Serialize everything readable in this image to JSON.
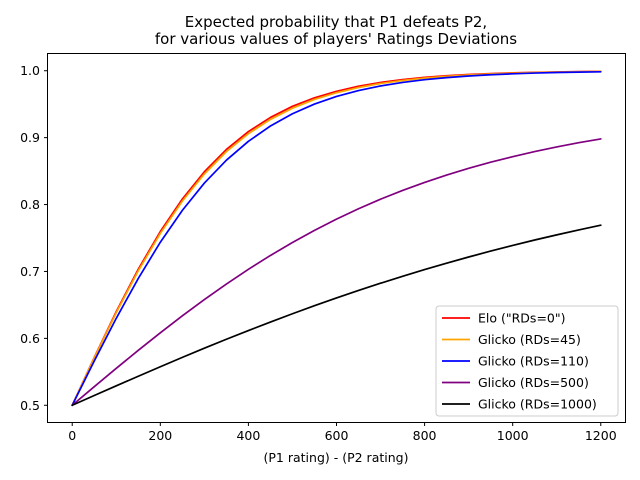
{
  "chart_data": {
    "type": "line",
    "title": "Expected probability that P1 defeats P2,",
    "subtitle": "for various values of players' Ratings Deviations",
    "xlabel": "(P1 rating) - (P2 rating)",
    "ylabel": "",
    "xlim": [
      -55,
      1255
    ],
    "ylim": [
      0.475,
      1.025
    ],
    "xticks": [
      0,
      200,
      400,
      600,
      800,
      1000,
      1200
    ],
    "yticks": [
      0.5,
      0.6,
      0.7,
      0.8,
      0.9,
      1.0
    ],
    "xtick_labels": [
      "0",
      "200",
      "400",
      "600",
      "800",
      "1000",
      "1200"
    ],
    "ytick_labels": [
      "0.5",
      "0.6",
      "0.7",
      "0.8",
      "0.9",
      "1.0"
    ],
    "grid": false,
    "legend_position": "lower-right",
    "x": [
      0,
      50,
      100,
      150,
      200,
      250,
      300,
      350,
      400,
      450,
      500,
      550,
      600,
      650,
      700,
      750,
      800,
      850,
      900,
      950,
      1000,
      1050,
      1100,
      1150,
      1200
    ],
    "series": [
      {
        "name": "Elo (\"RDs=0\")",
        "color": "#ff0000",
        "values": [
          0.5,
          0.5715,
          0.6401,
          0.7034,
          0.7597,
          0.8083,
          0.849,
          0.8824,
          0.9091,
          0.9302,
          0.9468,
          0.9596,
          0.9693,
          0.9768,
          0.9825,
          0.9868,
          0.9901,
          0.9925,
          0.9944,
          0.9958,
          0.9968,
          0.9976,
          0.9982,
          0.9987,
          0.999
        ]
      },
      {
        "name": "Glicko (RDs=45)",
        "color": "#ffa500",
        "values": [
          0.5,
          0.5706,
          0.6384,
          0.701,
          0.7568,
          0.8051,
          0.8457,
          0.8791,
          0.9059,
          0.9272,
          0.944,
          0.9571,
          0.9671,
          0.9749,
          0.9809,
          0.9854,
          0.9889,
          0.9916,
          0.9936,
          0.9951,
          0.9963,
          0.9972,
          0.9979,
          0.9984,
          0.9988
        ]
      },
      {
        "name": "Glicko (RDs=110)",
        "color": "#0000ff",
        "values": [
          0.5,
          0.5661,
          0.63,
          0.6896,
          0.7437,
          0.7913,
          0.8321,
          0.8663,
          0.8945,
          0.9174,
          0.9357,
          0.9502,
          0.9615,
          0.9704,
          0.9772,
          0.9825,
          0.9866,
          0.9897,
          0.9921,
          0.994,
          0.9954,
          0.9965,
          0.9973,
          0.9979,
          0.9984
        ]
      },
      {
        "name": "Glicko (RDs=500)",
        "color": "#800080",
        "values": [
          0.5,
          0.5278,
          0.5552,
          0.5821,
          0.6083,
          0.6337,
          0.658,
          0.6812,
          0.7032,
          0.7239,
          0.7433,
          0.7614,
          0.7782,
          0.7937,
          0.808,
          0.8211,
          0.8331,
          0.8441,
          0.8541,
          0.8633,
          0.8716,
          0.8792,
          0.8861,
          0.8924,
          0.8981
        ]
      },
      {
        "name": "Glicko (RDs=1000)",
        "color": "#000000",
        "values": [
          0.5,
          0.5146,
          0.5291,
          0.5434,
          0.5576,
          0.5716,
          0.5853,
          0.5987,
          0.6117,
          0.6244,
          0.6368,
          0.6488,
          0.6604,
          0.6716,
          0.6824,
          0.6928,
          0.7028,
          0.7124,
          0.7216,
          0.7304,
          0.7389,
          0.747,
          0.7547,
          0.7621,
          0.7691
        ]
      }
    ]
  }
}
